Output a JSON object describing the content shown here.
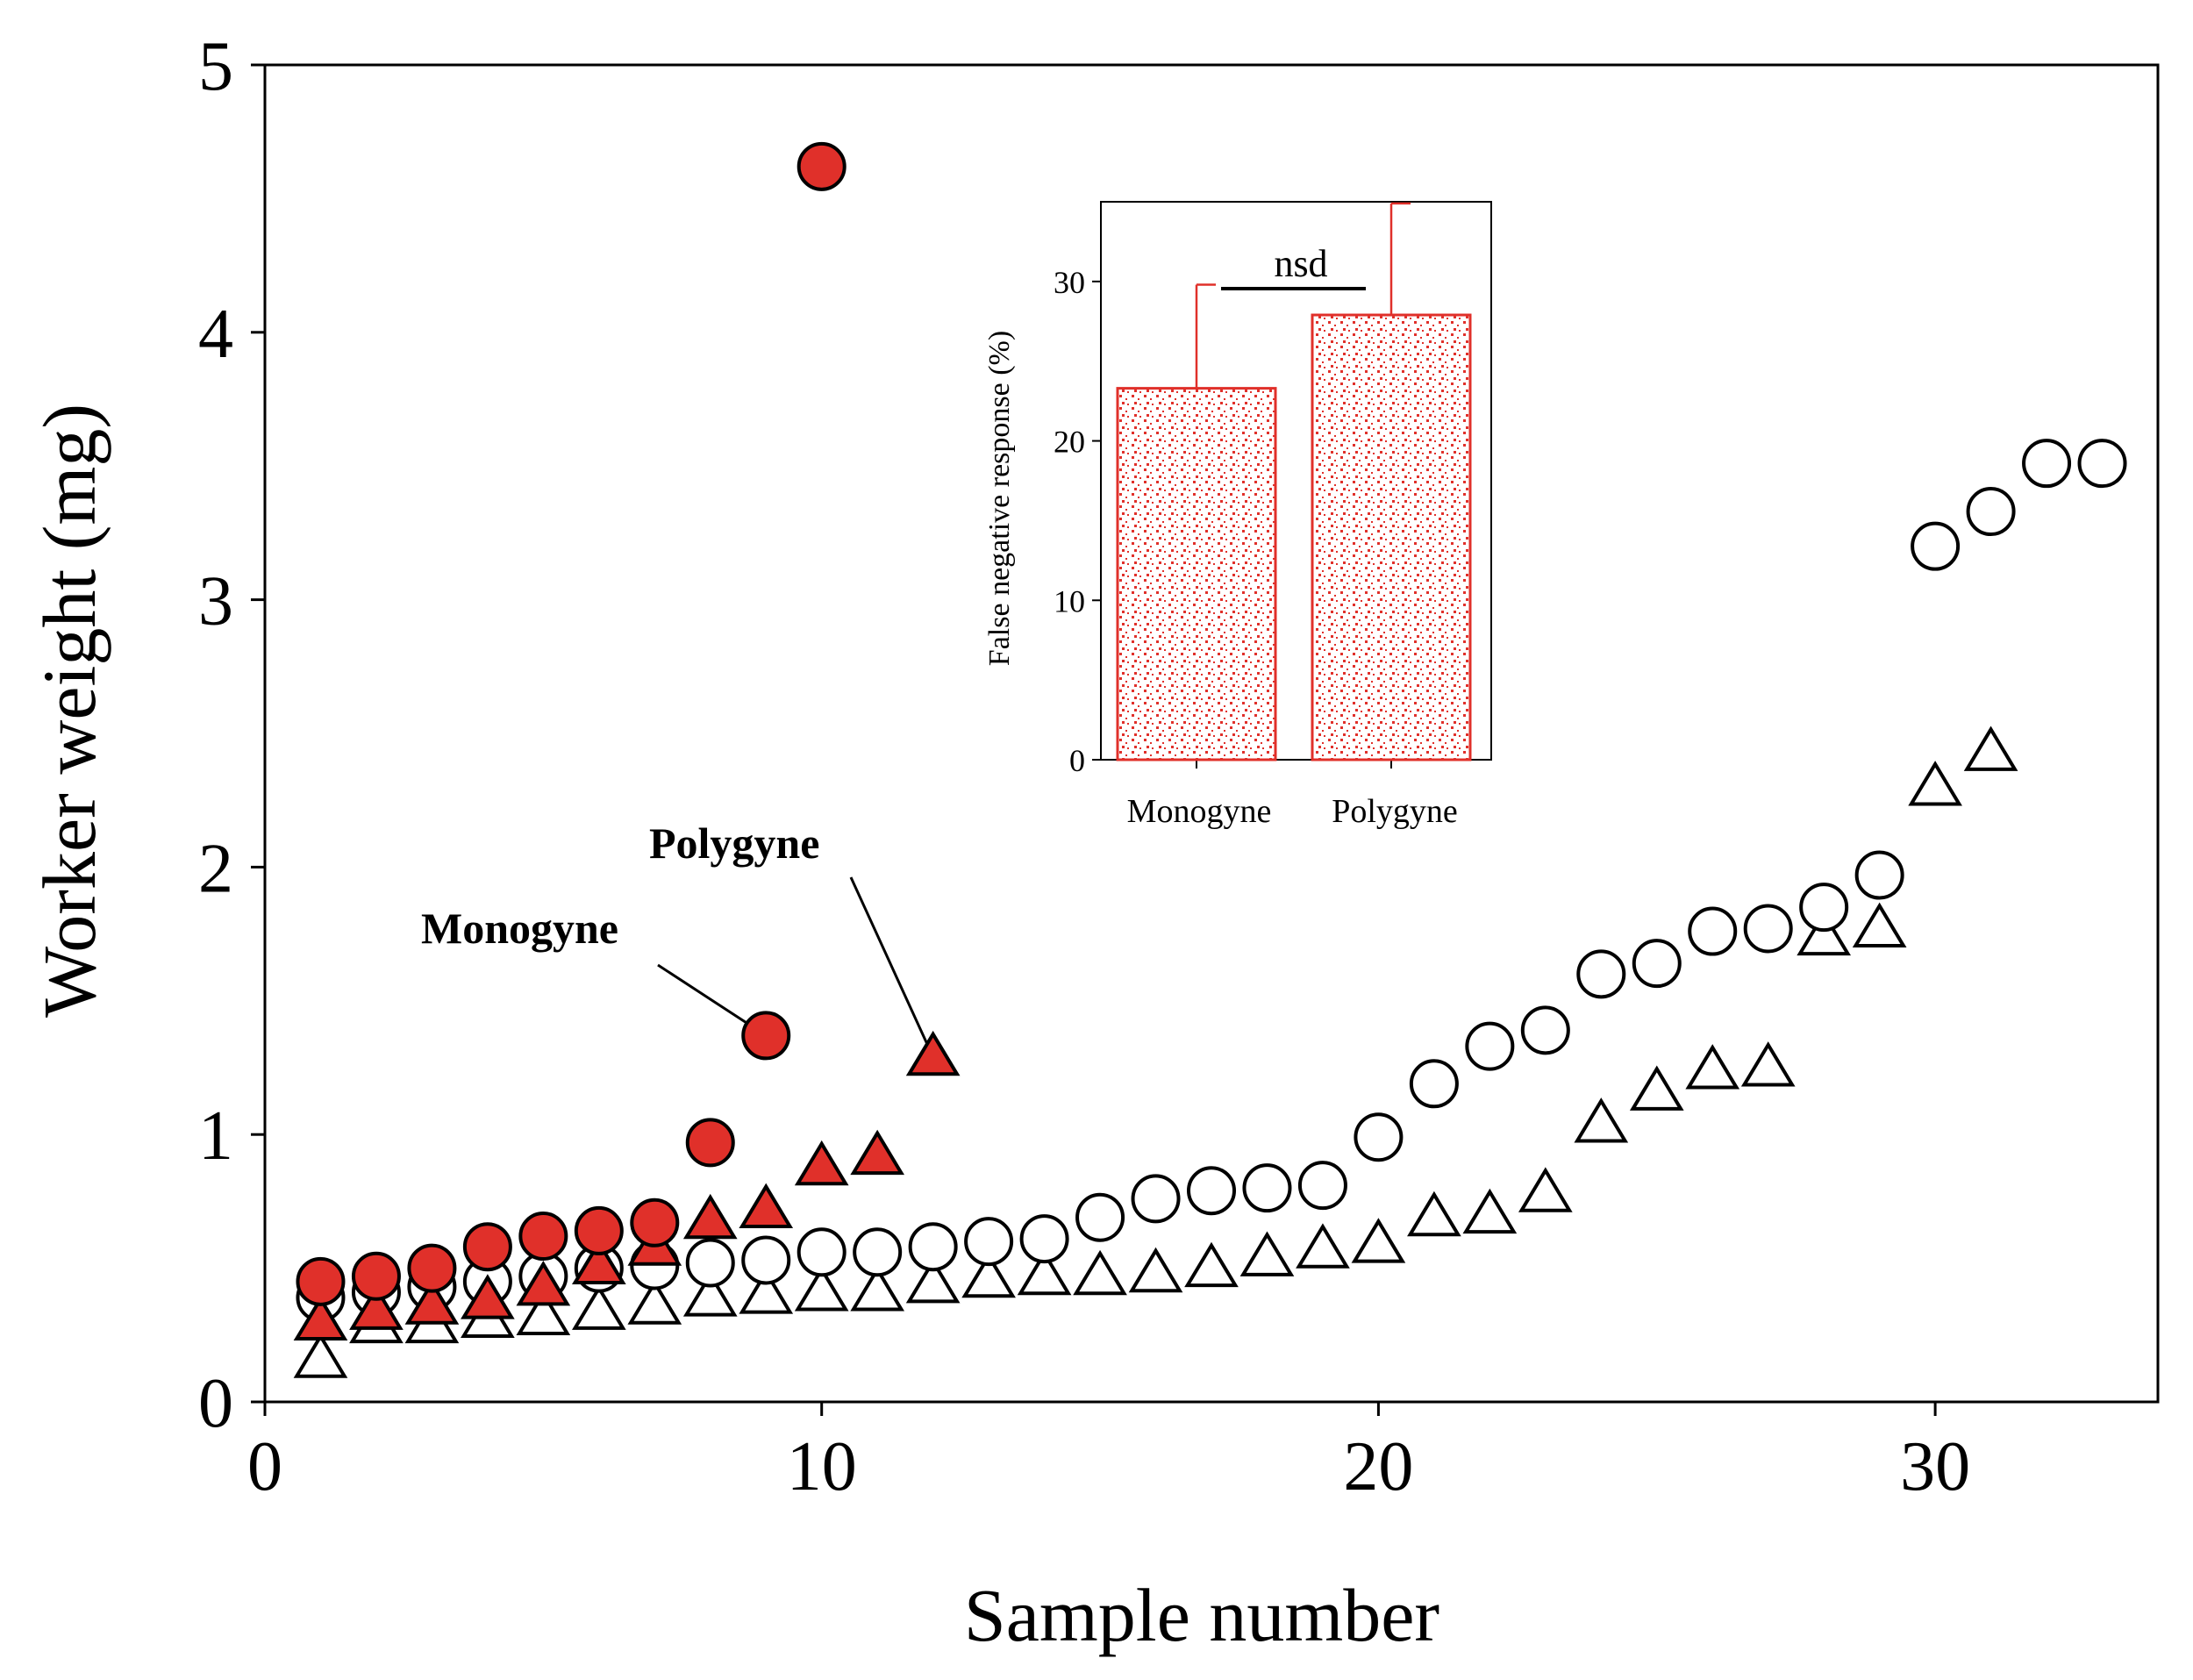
{
  "chart_data": [
    {
      "type": "scatter",
      "xlabel": "Sample number",
      "ylabel": "Worker weight (mg)",
      "xlim": [
        0,
        34
      ],
      "ylim": [
        0,
        5
      ],
      "xticks": [
        0,
        10,
        20,
        30
      ],
      "xtick_labels": [
        "0",
        "10",
        "20",
        "30"
      ],
      "yticks": [
        0,
        1,
        2,
        3,
        4,
        5
      ],
      "ytick_labels": [
        "0",
        "1",
        "2",
        "3",
        "4",
        "5"
      ],
      "series": [
        {
          "name": "Monogyne (filled circles)",
          "marker": "circle",
          "filled": true,
          "color": "#e0302a",
          "x": [
            1,
            2,
            3,
            4,
            5,
            6,
            7,
            8,
            9,
            10
          ],
          "y": [
            0.45,
            0.47,
            0.5,
            0.58,
            0.62,
            0.64,
            0.67,
            0.97,
            1.37,
            4.62
          ]
        },
        {
          "name": "Polygyne (filled triangles)",
          "marker": "triangle",
          "filled": true,
          "color": "#e0302a",
          "x": [
            1,
            2,
            3,
            4,
            5,
            6,
            7,
            8,
            9,
            10,
            11,
            12
          ],
          "y": [
            0.3,
            0.34,
            0.36,
            0.38,
            0.43,
            0.51,
            0.58,
            0.68,
            0.72,
            0.88,
            0.92,
            1.29
          ]
        },
        {
          "name": "Open circles",
          "marker": "circle",
          "filled": false,
          "color": "#000000",
          "x": [
            1,
            2,
            3,
            4,
            5,
            6,
            7,
            8,
            9,
            10,
            11,
            12,
            13,
            14,
            15,
            16,
            17,
            18,
            19,
            20,
            21,
            22,
            23,
            24,
            25,
            26,
            27,
            28,
            29,
            30,
            31,
            32,
            33
          ],
          "y": [
            0.39,
            0.41,
            0.43,
            0.45,
            0.47,
            0.5,
            0.51,
            0.52,
            0.53,
            0.56,
            0.56,
            0.58,
            0.6,
            0.61,
            0.69,
            0.76,
            0.79,
            0.8,
            0.81,
            0.99,
            1.19,
            1.33,
            1.39,
            1.6,
            1.64,
            1.76,
            1.77,
            1.85,
            1.97,
            3.2,
            3.33,
            3.51,
            3.51
          ]
        },
        {
          "name": "Open triangles",
          "marker": "triangle",
          "filled": false,
          "color": "#000000",
          "x": [
            1,
            2,
            3,
            4,
            5,
            6,
            7,
            8,
            9,
            10,
            11,
            12,
            13,
            14,
            15,
            16,
            17,
            18,
            19,
            20,
            21,
            22,
            23,
            24,
            25,
            26,
            27,
            28,
            29,
            30,
            31
          ],
          "y": [
            0.16,
            0.29,
            0.29,
            0.31,
            0.32,
            0.34,
            0.36,
            0.39,
            0.4,
            0.41,
            0.41,
            0.44,
            0.46,
            0.47,
            0.47,
            0.48,
            0.5,
            0.54,
            0.57,
            0.59,
            0.69,
            0.7,
            0.78,
            1.04,
            1.16,
            1.24,
            1.25,
            1.74,
            1.77,
            2.3,
            2.43
          ]
        }
      ],
      "annotations": [
        {
          "text": "Monogyne",
          "points_to": {
            "x": 9,
            "y": 1.37
          }
        },
        {
          "text": "Polygyne",
          "points_to": {
            "x": 12,
            "y": 1.29
          }
        }
      ],
      "colors": {
        "accent": "#e0302a",
        "axis": "#000000"
      }
    },
    {
      "type": "bar",
      "inset": true,
      "categories": [
        "Monogyne",
        "Polygyne"
      ],
      "values": [
        23.3,
        27.9
      ],
      "errors": [
        6.5,
        7.0
      ],
      "ylabel": "False negative response (%)",
      "ylim": [
        0,
        35
      ],
      "yticks": [
        0,
        10,
        20,
        30
      ],
      "ytick_labels": [
        "0",
        "10",
        "20",
        "30"
      ],
      "significance": "nsd",
      "color": "#e0302a"
    }
  ]
}
